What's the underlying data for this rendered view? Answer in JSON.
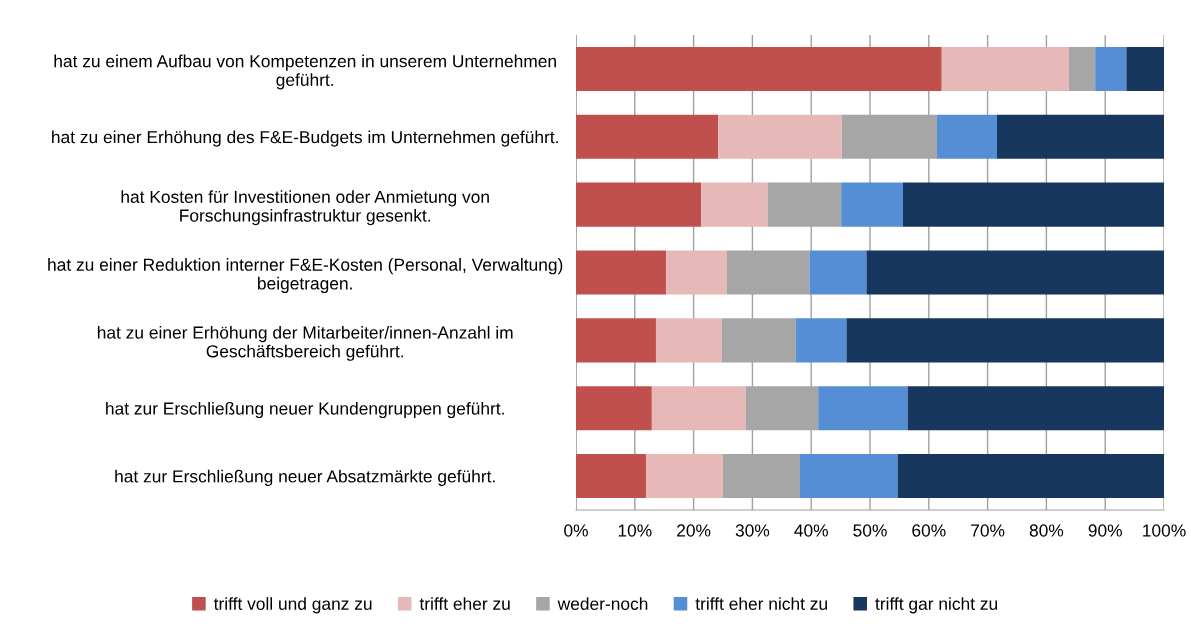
{
  "chart_data": {
    "type": "bar",
    "orientation": "horizontal",
    "stacked": true,
    "categories": [
      "hat zu einem Aufbau von Kompetenzen in unserem Unternehmen\ngeführt.",
      "hat zu einer Erhöhung des F&E-Budgets im Unternehmen geführt.",
      "hat Kosten für Investitionen oder Anmietung von\nForschungsinfrastruktur gesenkt.",
      "hat zu einer Reduktion interner F&E-Kosten (Personal, Verwaltung)\nbeigetragen.",
      "hat zu einer Erhöhung der Mitarbeiter/innen-Anzahl im\nGeschäftsbereich geführt.",
      "hat zur Erschließung neuer Kundengruppen geführt.",
      "hat zur Erschließung neuer Absatzmärkte geführt."
    ],
    "series": [
      {
        "name": "trifft voll und ganz zu",
        "color": "#c0504d",
        "values": [
          62.2,
          24.2,
          21.3,
          15.3,
          13.6,
          12.9,
          11.9
        ]
      },
      {
        "name": "trifft eher zu",
        "color": "#e6b9b8",
        "values": [
          21.6,
          21.0,
          11.3,
          10.3,
          11.2,
          16.0,
          13.1
        ]
      },
      {
        "name": "weder-noch",
        "color": "#a6a6a6",
        "values": [
          4.5,
          16.2,
          12.5,
          14.1,
          12.6,
          12.3,
          13.1
        ]
      },
      {
        "name": "trifft eher nicht zu",
        "color": "#558ed5",
        "values": [
          5.3,
          10.2,
          10.5,
          9.7,
          8.6,
          15.2,
          16.6
        ]
      },
      {
        "name": "trifft gar nicht zu",
        "color": "#17375e",
        "values": [
          6.4,
          28.4,
          44.4,
          50.6,
          54.0,
          43.6,
          45.3
        ]
      }
    ],
    "xlim": [
      0,
      100
    ],
    "xticks": [
      {
        "value": 0,
        "label": "0%"
      },
      {
        "value": 10,
        "label": "10%"
      },
      {
        "value": 20,
        "label": "20%"
      },
      {
        "value": 30,
        "label": "30%"
      },
      {
        "value": 40,
        "label": "40%"
      },
      {
        "value": 50,
        "label": "50%"
      },
      {
        "value": 60,
        "label": "60%"
      },
      {
        "value": 70,
        "label": "70%"
      },
      {
        "value": 80,
        "label": "80%"
      },
      {
        "value": 90,
        "label": "90%"
      },
      {
        "value": 100,
        "label": "100%"
      }
    ],
    "grid": "x",
    "legend": "bottom"
  }
}
